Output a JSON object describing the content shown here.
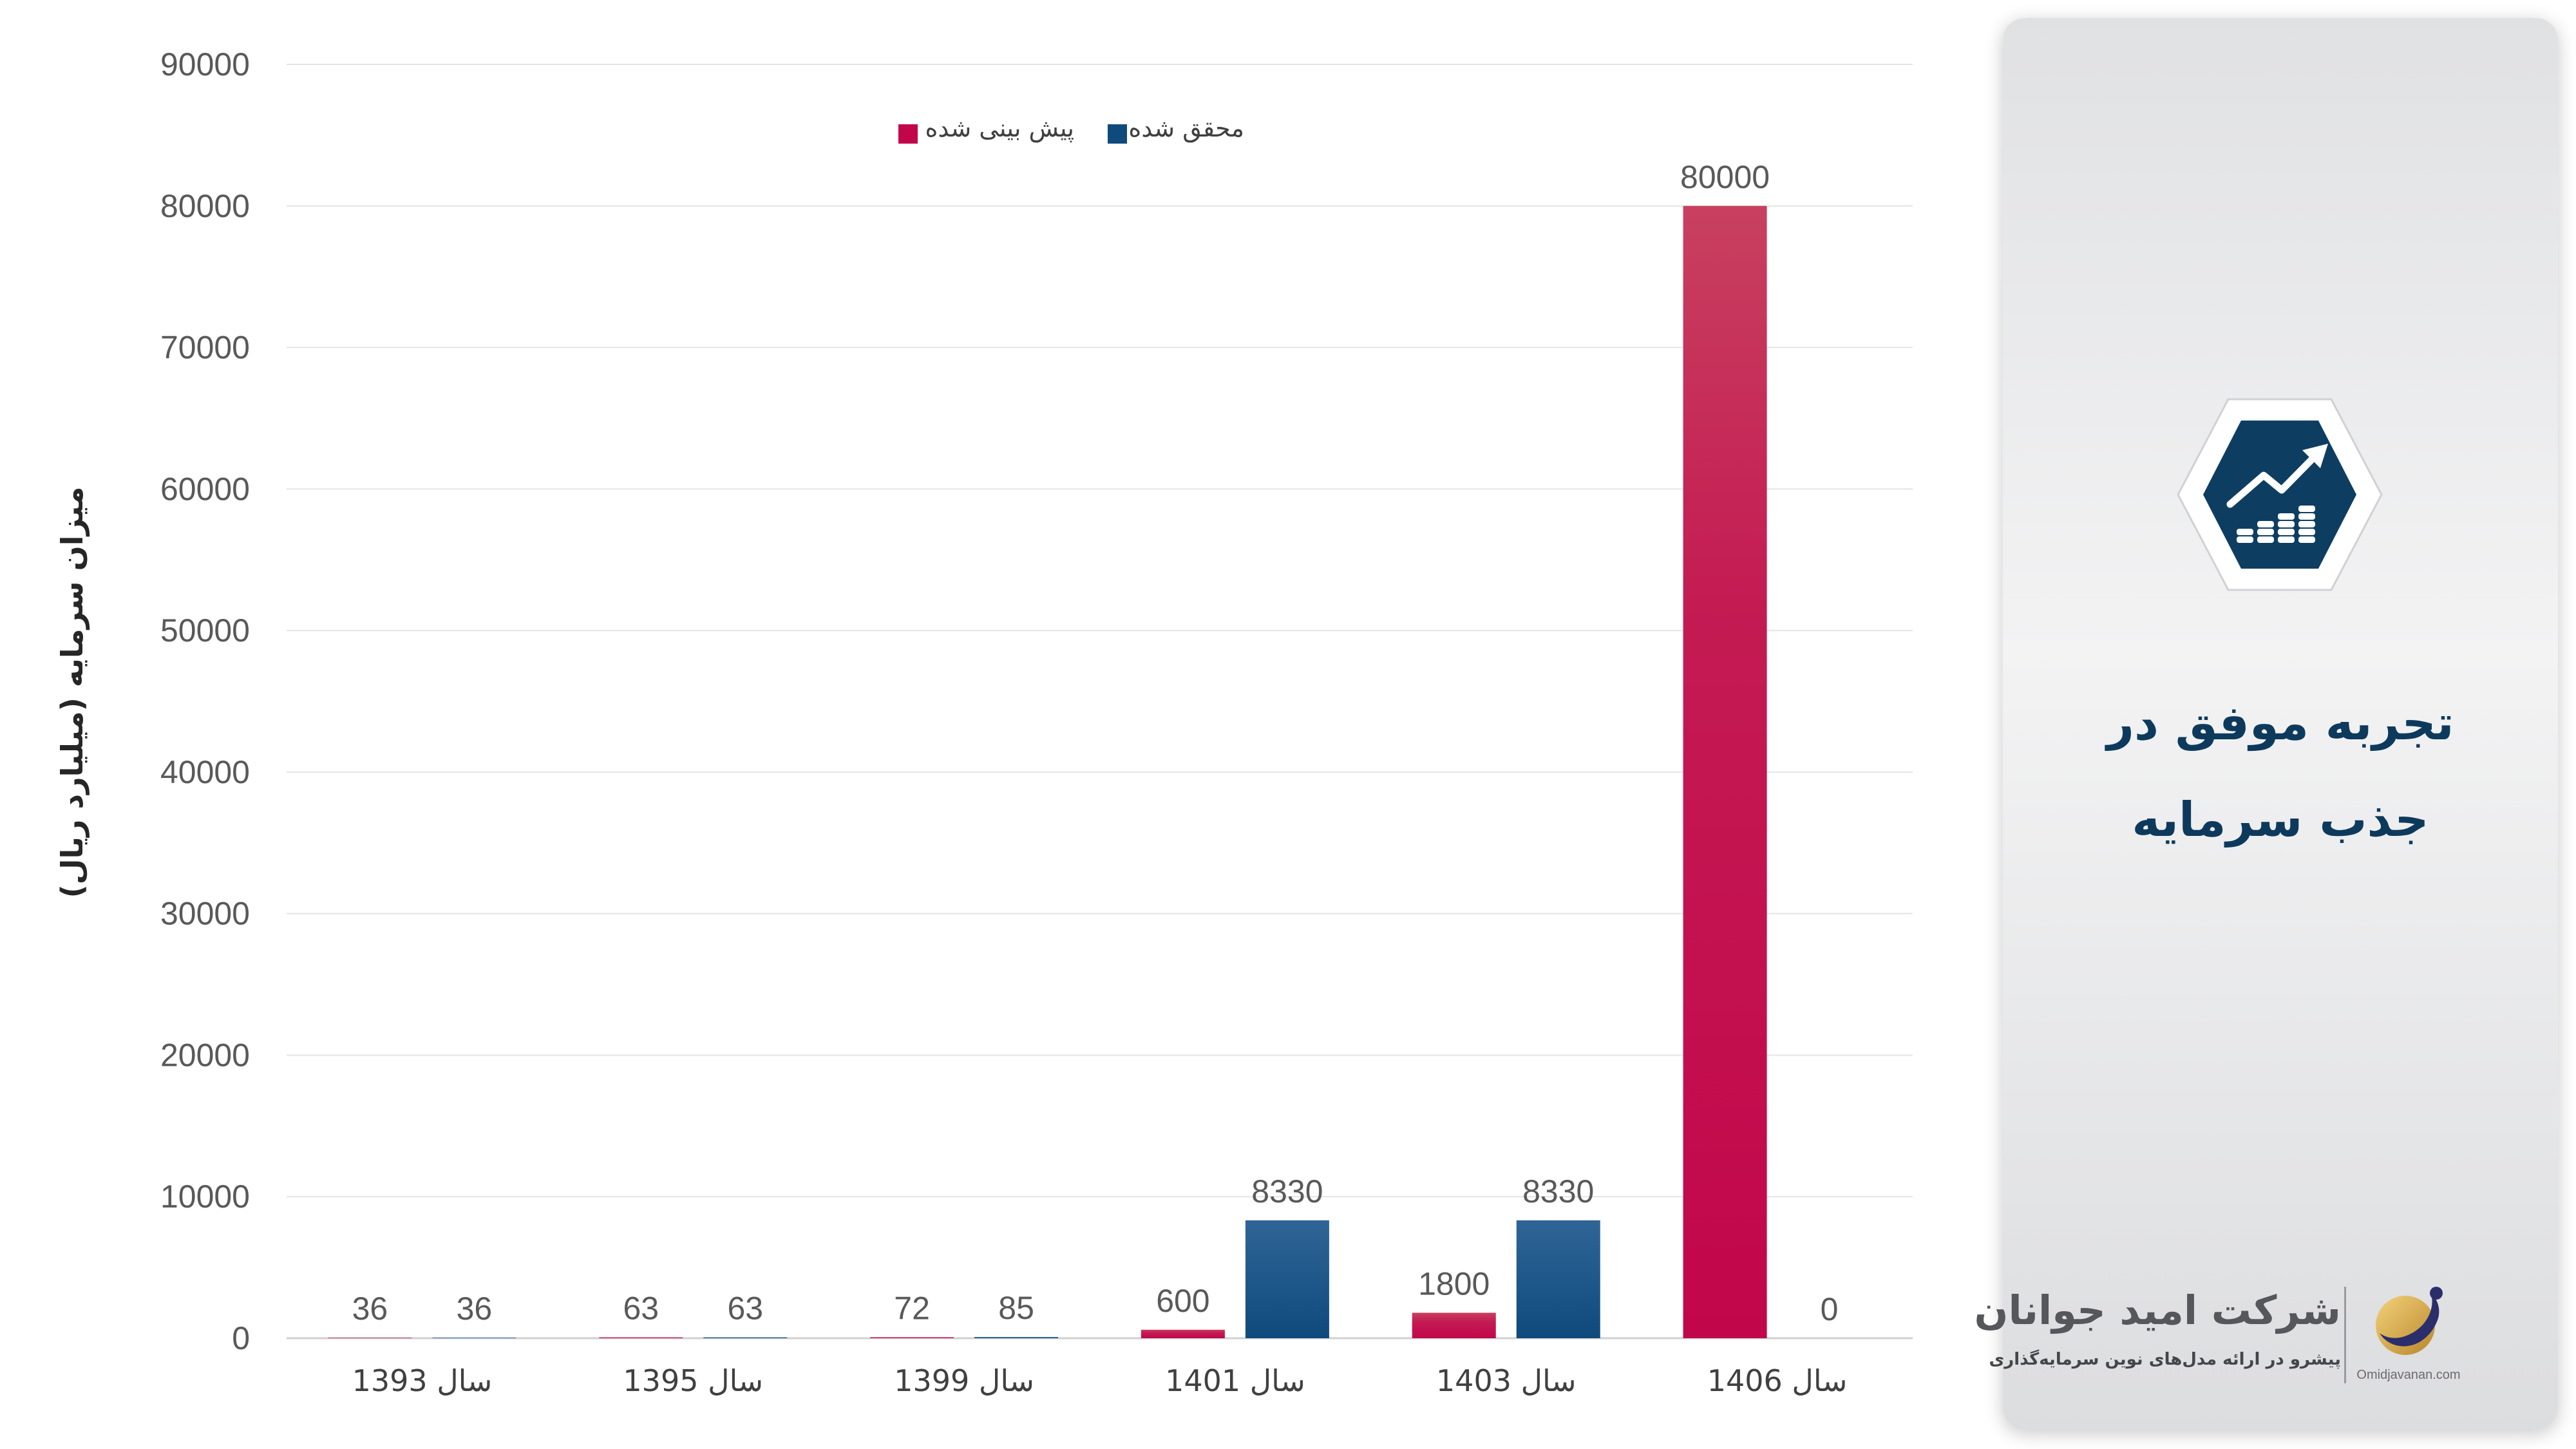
{
  "chart_data": {
    "type": "bar",
    "categories": [
      "سال 1393",
      "سال 1395",
      "سال 1399",
      "سال 1401",
      "سال 1403",
      "سال 1406"
    ],
    "series": [
      {
        "name": "پیش بینی شده",
        "values": [
          36,
          63,
          72,
          600,
          1800,
          80000
        ],
        "color": "#c2064a"
      },
      {
        "name": "محقق شده",
        "values": [
          36,
          63,
          85,
          8330,
          8330,
          0
        ],
        "color": "#0f4a7d"
      }
    ],
    "ylabel": "میزان سرمایه (میلیارد ریال)",
    "xlabel": "",
    "ylim": [
      0,
      90000
    ],
    "yticks": [
      0,
      10000,
      20000,
      30000,
      40000,
      50000,
      60000,
      70000,
      80000,
      90000
    ],
    "grid": true,
    "legend_position": "top-center"
  },
  "panel": {
    "title_line1": "تجربه موفق در",
    "title_line2": "جذب سرمایه",
    "icon": "growth-chart-coins-icon",
    "accent_color": "#0d3a5c"
  },
  "brand": {
    "name": "شرکت امید جوانان",
    "tagline": "پیشرو در ارائه مدل‌های نوین سرمایه‌گذاری",
    "url": "Omidjavanan.com",
    "logo": "omid-javanan-logo-icon"
  }
}
